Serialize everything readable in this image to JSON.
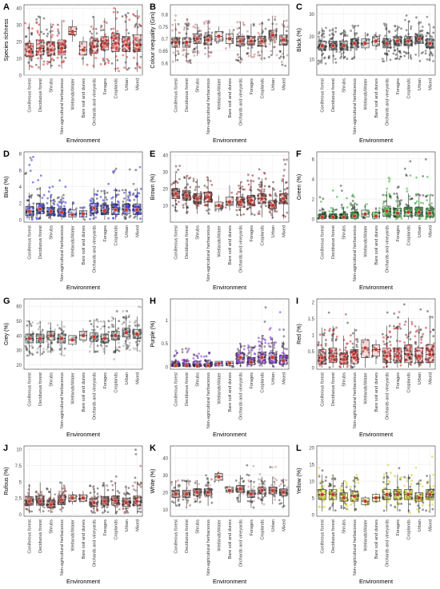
{
  "figure": {
    "categories": [
      "Coniferous forest",
      "Deciduous forest",
      "Shrubs",
      "Non-agricultural herbaceous",
      "Wetlands/Water",
      "Bare soil and dunes",
      "Orchards and vineyards",
      "Forages",
      "Croplands",
      "Urban",
      "Mixed"
    ],
    "xlabel": "Environment"
  },
  "chart_data": [
    {
      "type": "box",
      "panel": "A",
      "ylabel": "Species richness",
      "ylim": [
        0,
        42
      ],
      "yticks": [
        0,
        10,
        20,
        30,
        40
      ],
      "color": "#e03030",
      "medians": [
        14,
        16,
        15,
        16,
        26,
        15,
        17,
        19,
        19,
        18,
        18
      ],
      "q1": [
        11,
        12,
        12,
        12,
        24,
        12,
        13,
        15,
        14,
        14,
        14
      ],
      "q3": [
        19,
        21,
        20,
        21,
        29,
        20,
        22,
        23,
        25,
        23,
        24
      ],
      "min": [
        3,
        3,
        4,
        4,
        20,
        6,
        4,
        6,
        2,
        3,
        2
      ],
      "max": [
        33,
        35,
        31,
        33,
        33,
        23,
        35,
        34,
        40,
        40,
        41
      ]
    },
    {
      "type": "box",
      "panel": "B",
      "ylabel": "Colour inequality (Gini)",
      "ylim": [
        0.55,
        0.84
      ],
      "yticks": [
        0.6,
        0.65,
        0.7,
        0.75,
        0.8
      ],
      "color": "#c08080",
      "medians": [
        0.685,
        0.685,
        0.7,
        0.695,
        0.71,
        0.7,
        0.69,
        0.69,
        0.69,
        0.715,
        0.695
      ],
      "q1": [
        0.665,
        0.665,
        0.68,
        0.675,
        0.69,
        0.68,
        0.67,
        0.675,
        0.67,
        0.695,
        0.675
      ],
      "q3": [
        0.705,
        0.705,
        0.72,
        0.715,
        0.73,
        0.72,
        0.71,
        0.71,
        0.71,
        0.735,
        0.715
      ],
      "min": [
        0.6,
        0.6,
        0.63,
        0.62,
        0.68,
        0.66,
        0.6,
        0.62,
        0.6,
        0.62,
        0.58
      ],
      "max": [
        0.8,
        0.79,
        0.76,
        0.78,
        0.75,
        0.74,
        0.78,
        0.77,
        0.79,
        0.8,
        0.8
      ]
    },
    {
      "type": "box",
      "panel": "C",
      "ylabel": "Black (%)",
      "ylim": [
        3,
        34
      ],
      "yticks": [
        10,
        20,
        30
      ],
      "color": "#555555",
      "medians": [
        16,
        16,
        16,
        17,
        17,
        18,
        17,
        18,
        18,
        19,
        17
      ],
      "q1": [
        14,
        14,
        14,
        15,
        15,
        16,
        15,
        16,
        16,
        17,
        15
      ],
      "q3": [
        18,
        18,
        18,
        19,
        19,
        20,
        19,
        20,
        20,
        21,
        19
      ],
      "min": [
        8,
        8,
        10,
        10,
        14,
        14,
        9,
        10,
        8,
        8,
        5
      ],
      "max": [
        27,
        27,
        23,
        26,
        22,
        22,
        26,
        25,
        30,
        30,
        33
      ]
    },
    {
      "type": "box",
      "panel": "D",
      "ylabel": "Blue (%)",
      "ylim": [
        -0.3,
        8.2
      ],
      "yticks": [
        0,
        2,
        4,
        6,
        8
      ],
      "color": "#3030d0",
      "medians": [
        1.0,
        1.3,
        1.0,
        0.9,
        0.6,
        0.7,
        1.4,
        1.1,
        1.2,
        1.2,
        1.2
      ],
      "q1": [
        0.5,
        0.7,
        0.5,
        0.4,
        0.3,
        0.3,
        0.8,
        0.6,
        0.6,
        0.7,
        0.6
      ],
      "q3": [
        1.6,
        2.0,
        1.5,
        1.4,
        1.2,
        1.1,
        2.0,
        1.8,
        1.9,
        1.9,
        1.9
      ],
      "min": [
        0,
        0,
        0,
        0,
        0,
        0,
        0,
        0,
        0,
        0,
        0
      ],
      "max": [
        7.8,
        5.5,
        4.8,
        5.0,
        2.2,
        1.6,
        4.5,
        4.6,
        6.5,
        6.4,
        6.8
      ]
    },
    {
      "type": "box",
      "panel": "E",
      "ylabel": "Brown (%)",
      "ylim": [
        0,
        42
      ],
      "yticks": [
        10,
        20,
        30,
        40
      ],
      "color": "#a03030",
      "medians": [
        17,
        16,
        14,
        15,
        10,
        12,
        12,
        13,
        14,
        10,
        14
      ],
      "q1": [
        14,
        13,
        11,
        12,
        8,
        10,
        9,
        10,
        11,
        8,
        11
      ],
      "q3": [
        20,
        19,
        17,
        18,
        12,
        15,
        15,
        16,
        17,
        13,
        17
      ],
      "min": [
        6,
        5,
        5,
        5,
        6,
        7,
        4,
        4,
        3,
        2,
        2
      ],
      "max": [
        35,
        33,
        28,
        30,
        16,
        22,
        30,
        31,
        33,
        30,
        40
      ]
    },
    {
      "type": "box",
      "panel": "F",
      "ylabel": "Green (%)",
      "ylim": [
        -0.3,
        6.7
      ],
      "yticks": [
        0,
        2,
        4,
        6
      ],
      "color": "#30b030",
      "medians": [
        0.2,
        0.2,
        0.2,
        0.3,
        0.5,
        0.3,
        0.8,
        0.6,
        0.7,
        0.7,
        0.6
      ],
      "q1": [
        0.05,
        0.05,
        0.05,
        0.1,
        0.2,
        0.1,
        0.3,
        0.2,
        0.3,
        0.3,
        0.2
      ],
      "q3": [
        0.5,
        0.5,
        0.5,
        0.7,
        0.9,
        0.7,
        1.3,
        1.1,
        1.2,
        1.2,
        1.1
      ],
      "min": [
        0,
        0,
        0,
        0,
        0,
        0,
        0,
        0,
        0,
        0,
        0
      ],
      "max": [
        2.2,
        4.0,
        3.6,
        2.5,
        1.5,
        1.1,
        4.6,
        4.2,
        5.8,
        6.3,
        6.1
      ]
    },
    {
      "type": "box",
      "panel": "G",
      "ylabel": "Grey (%)",
      "ylim": [
        17,
        65
      ],
      "yticks": [
        20,
        30,
        40,
        50,
        60
      ],
      "color": "#a0a0a0",
      "medians": [
        38,
        38,
        40,
        38,
        37,
        40,
        39,
        38,
        40,
        42,
        41
      ],
      "q1": [
        35,
        35,
        37,
        35,
        34,
        37,
        36,
        35,
        37,
        39,
        38
      ],
      "q3": [
        41,
        41,
        43,
        41,
        40,
        43,
        42,
        41,
        43,
        45,
        44
      ],
      "min": [
        25,
        25,
        28,
        26,
        33,
        35,
        28,
        27,
        23,
        27,
        25
      ],
      "max": [
        50,
        51,
        49,
        50,
        40,
        45,
        52,
        52,
        57,
        58,
        60
      ]
    },
    {
      "type": "box",
      "panel": "H",
      "ylabel": "Purple (%)",
      "ylim": [
        -0.05,
        1.45
      ],
      "yticks": [
        0,
        0.5,
        1
      ],
      "color": "#8030d0",
      "medians": [
        0.03,
        0.03,
        0.02,
        0.03,
        0.07,
        0.08,
        0.2,
        0.1,
        0.2,
        0.2,
        0.13
      ],
      "q1": [
        0.01,
        0.01,
        0.01,
        0.01,
        0.02,
        0.03,
        0.08,
        0.04,
        0.08,
        0.08,
        0.05
      ],
      "q3": [
        0.07,
        0.07,
        0.06,
        0.07,
        0.12,
        0.12,
        0.3,
        0.2,
        0.32,
        0.3,
        0.25
      ],
      "min": [
        0,
        0,
        0,
        0,
        0,
        0,
        0,
        0,
        0,
        0,
        0
      ],
      "max": [
        0.38,
        0.4,
        0.3,
        0.37,
        0.12,
        0.12,
        0.5,
        0.48,
        1.35,
        0.85,
        1.2
      ]
    },
    {
      "type": "box",
      "panel": "I",
      "ylabel": "Red (%)",
      "ylim": [
        -0.05,
        2.1
      ],
      "yticks": [
        0,
        0.5,
        1,
        1.5,
        2
      ],
      "color": "#d03030",
      "medians": [
        0.3,
        0.35,
        0.25,
        0.3,
        0.6,
        0.55,
        0.35,
        0.35,
        0.4,
        0.35,
        0.4
      ],
      "q1": [
        0.1,
        0.15,
        0.1,
        0.12,
        0.3,
        0.35,
        0.15,
        0.15,
        0.15,
        0.15,
        0.15
      ],
      "q3": [
        0.55,
        0.6,
        0.45,
        0.55,
        0.85,
        0.7,
        0.6,
        0.6,
        0.7,
        0.6,
        0.7
      ],
      "min": [
        0,
        0,
        0,
        0,
        0,
        0.1,
        0,
        0,
        0,
        0,
        0
      ],
      "max": [
        1.9,
        1.8,
        1.7,
        1.4,
        0.9,
        0.85,
        2.0,
        1.7,
        2.0,
        1.9,
        1.9
      ]
    },
    {
      "type": "box",
      "panel": "J",
      "ylabel": "Rufous (%)",
      "ylim": [
        -0.3,
        10.5
      ],
      "yticks": [
        0,
        2.5,
        5,
        7.5,
        10
      ],
      "color": "#a05050",
      "medians": [
        2.0,
        2.0,
        1.5,
        2.2,
        2.5,
        2.5,
        1.8,
        2.0,
        2.1,
        1.8,
        2.0
      ],
      "q1": [
        1.4,
        1.4,
        1.0,
        1.5,
        2.0,
        2.0,
        1.2,
        1.4,
        1.4,
        1.2,
        1.3
      ],
      "q3": [
        2.7,
        2.8,
        2.2,
        2.9,
        3.0,
        3.0,
        2.5,
        2.7,
        2.8,
        2.5,
        2.8
      ],
      "min": [
        0.2,
        0.2,
        0.2,
        0.3,
        1.5,
        1.8,
        0.2,
        0.2,
        0.1,
        0.1,
        0.1
      ],
      "max": [
        5.5,
        5.0,
        4.4,
        5.0,
        3.5,
        3.6,
        5.2,
        5.0,
        6.0,
        6.5,
        10.0
      ]
    },
    {
      "type": "box",
      "panel": "K",
      "ylabel": "White (%)",
      "ylim": [
        6,
        47
      ],
      "yticks": [
        10,
        20,
        30,
        40
      ],
      "color": "#c09090",
      "medians": [
        19,
        19,
        20,
        20,
        29,
        21,
        22,
        19,
        21,
        21,
        20
      ],
      "q1": [
        17,
        17,
        18,
        18,
        27,
        20,
        20,
        17,
        19,
        19,
        18
      ],
      "q3": [
        21,
        21,
        22,
        22,
        31,
        23,
        24,
        21,
        23,
        23,
        22
      ],
      "min": [
        12,
        11,
        14,
        12,
        26,
        19,
        12,
        10,
        10,
        8,
        8
      ],
      "max": [
        28,
        35,
        27,
        30,
        32,
        24,
        32,
        38,
        35,
        35,
        45
      ]
    },
    {
      "type": "box",
      "panel": "L",
      "ylabel": "Yellow (%)",
      "ylim": [
        -0.5,
        20.5
      ],
      "yticks": [
        0,
        5,
        10,
        15,
        20
      ],
      "color": "#d0d020",
      "medians": [
        6,
        6,
        5,
        5.5,
        4,
        5,
        6,
        6,
        6,
        5,
        6
      ],
      "q1": [
        4.5,
        4.5,
        4,
        4,
        3,
        4,
        4.5,
        4.5,
        4.5,
        4,
        4.5
      ],
      "q3": [
        7.5,
        7.5,
        6.5,
        7,
        5,
        6,
        7.5,
        7.5,
        7.5,
        6.5,
        7.5
      ],
      "min": [
        1,
        1,
        1.5,
        1,
        2.5,
        3.5,
        1,
        1,
        0.5,
        0.5,
        0.5
      ],
      "max": [
        14,
        12,
        11,
        13,
        5.5,
        6.5,
        16,
        14,
        19,
        15,
        19
      ]
    }
  ]
}
